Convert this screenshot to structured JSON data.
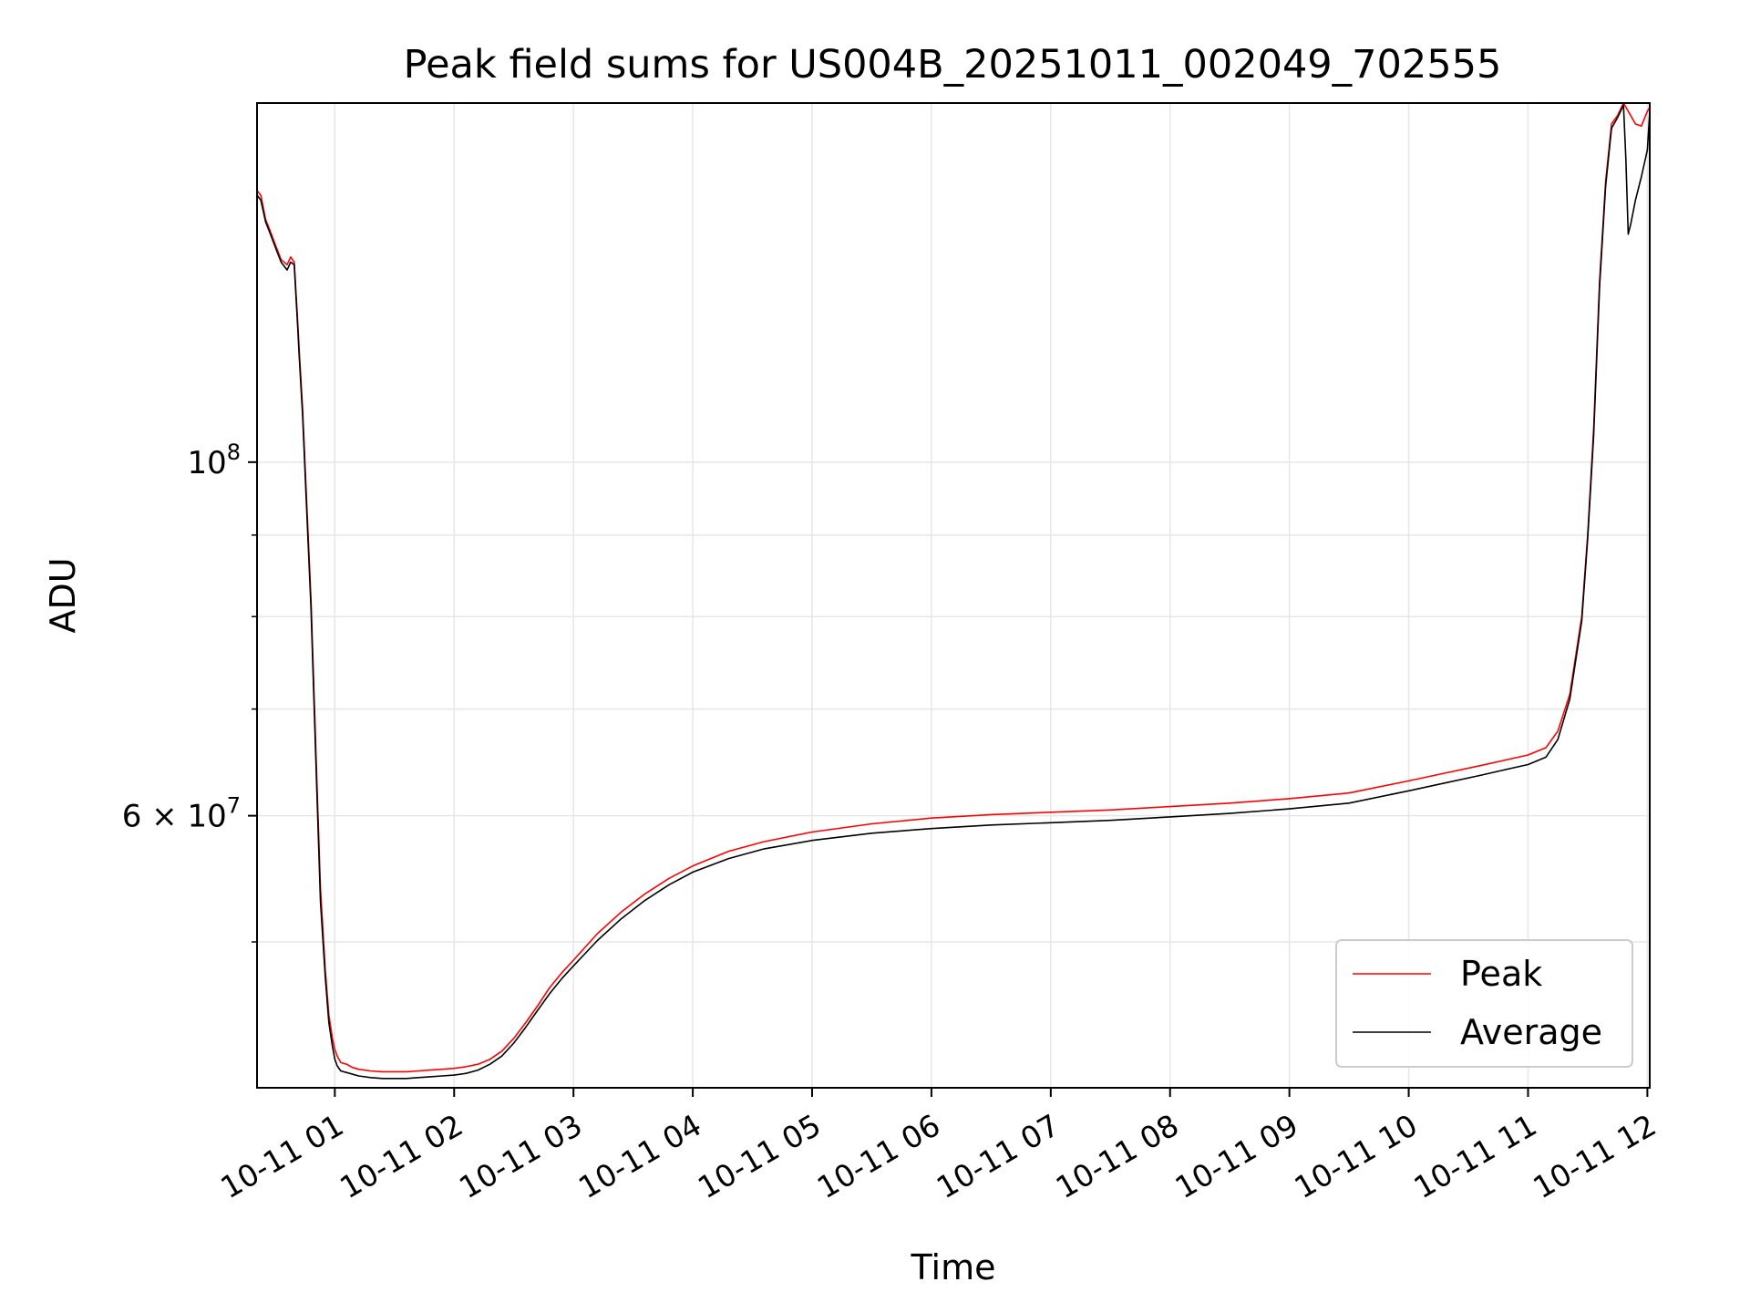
{
  "chart_data": {
    "type": "line",
    "title": "Peak field sums for US004B_20251011_002049_702555",
    "xlabel": "Time",
    "ylabel": "ADU",
    "yscale": "log",
    "ylim": [
      40500000,
      168000000
    ],
    "xlim": [
      0.348,
      12.02
    ],
    "grid": true,
    "legend_position": "lower-right",
    "y_ticks": [
      {
        "value": 100000000,
        "base": "10",
        "exp": "8",
        "mult": ""
      },
      {
        "value": 60000000,
        "base": "10",
        "exp": "7",
        "mult": "6 × "
      }
    ],
    "y_minor_ticks": [
      50000000,
      70000000,
      80000000,
      90000000
    ],
    "x_ticks": [
      {
        "value": 1,
        "label": "10-11 01"
      },
      {
        "value": 2,
        "label": "10-11 02"
      },
      {
        "value": 3,
        "label": "10-11 03"
      },
      {
        "value": 4,
        "label": "10-11 04"
      },
      {
        "value": 5,
        "label": "10-11 05"
      },
      {
        "value": 6,
        "label": "10-11 06"
      },
      {
        "value": 7,
        "label": "10-11 07"
      },
      {
        "value": 8,
        "label": "10-11 08"
      },
      {
        "value": 9,
        "label": "10-11 09"
      },
      {
        "value": 10,
        "label": "10-11 10"
      },
      {
        "value": 11,
        "label": "10-11 11"
      },
      {
        "value": 12,
        "label": "10-11 12"
      }
    ],
    "series": [
      {
        "name": "Peak",
        "color": "#ff0000",
        "x": [
          0.35,
          0.38,
          0.42,
          0.46,
          0.5,
          0.55,
          0.6,
          0.63,
          0.66,
          0.69,
          0.7,
          0.73,
          0.76,
          0.8,
          0.85,
          0.88,
          0.92,
          0.95,
          0.98,
          1.0,
          1.02,
          1.05,
          1.1,
          1.15,
          1.2,
          1.3,
          1.4,
          1.5,
          1.6,
          1.7,
          1.8,
          1.9,
          2.0,
          2.1,
          2.2,
          2.3,
          2.4,
          2.5,
          2.6,
          2.7,
          2.8,
          2.9,
          3.0,
          3.2,
          3.4,
          3.6,
          3.8,
          4.0,
          4.3,
          4.6,
          5.0,
          5.5,
          6.0,
          6.5,
          7.0,
          7.5,
          8.0,
          8.5,
          9.0,
          9.5,
          10.0,
          10.3,
          10.6,
          10.8,
          11.0,
          11.15,
          11.25,
          11.35,
          11.45,
          11.5,
          11.55,
          11.6,
          11.65,
          11.7,
          11.75,
          11.8,
          11.82,
          11.84,
          11.86,
          11.9,
          11.95,
          12.0,
          12.02
        ],
        "y": [
          148000000,
          147000000,
          142000000,
          139500000,
          137000000,
          134000000,
          133000000,
          134500000,
          133500000,
          122000000,
          118000000,
          108000000,
          96000000,
          82000000,
          63000000,
          54000000,
          48000000,
          45000000,
          43500000,
          42800000,
          42400000,
          42000000,
          41900000,
          41700000,
          41600000,
          41500000,
          41450000,
          41450000,
          41450000,
          41500000,
          41550000,
          41600000,
          41650000,
          41750000,
          41900000,
          42200000,
          42700000,
          43500000,
          44500000,
          45600000,
          46800000,
          47800000,
          48700000,
          50600000,
          52200000,
          53600000,
          54800000,
          55800000,
          57000000,
          57800000,
          58600000,
          59300000,
          59800000,
          60100000,
          60300000,
          60500000,
          60800000,
          61100000,
          61500000,
          62000000,
          63100000,
          63800000,
          64500000,
          65000000,
          65500000,
          66200000,
          67800000,
          71500000,
          80000000,
          90000000,
          105000000,
          130000000,
          150000000,
          163000000,
          165000000,
          168000000,
          167000000,
          166000000,
          165000000,
          163000000,
          162500000,
          166000000,
          167000000
        ]
      },
      {
        "name": "Average",
        "color": "#000000",
        "x": [
          0.35,
          0.38,
          0.42,
          0.46,
          0.5,
          0.55,
          0.6,
          0.63,
          0.66,
          0.69,
          0.7,
          0.73,
          0.76,
          0.8,
          0.85,
          0.88,
          0.92,
          0.95,
          0.98,
          1.0,
          1.02,
          1.05,
          1.1,
          1.15,
          1.2,
          1.3,
          1.4,
          1.5,
          1.6,
          1.7,
          1.8,
          1.9,
          2.0,
          2.1,
          2.2,
          2.3,
          2.4,
          2.5,
          2.6,
          2.7,
          2.8,
          2.9,
          3.0,
          3.2,
          3.4,
          3.6,
          3.8,
          4.0,
          4.3,
          4.6,
          5.0,
          5.5,
          6.0,
          6.5,
          7.0,
          7.5,
          8.0,
          8.5,
          9.0,
          9.5,
          10.0,
          10.3,
          10.6,
          10.8,
          11.0,
          11.15,
          11.25,
          11.35,
          11.45,
          11.5,
          11.55,
          11.6,
          11.65,
          11.7,
          11.75,
          11.8,
          11.82,
          11.84,
          11.86,
          11.9,
          11.95,
          12.0,
          12.02
        ],
        "y": [
          147000000,
          146000000,
          141500000,
          139000000,
          136500000,
          133500000,
          132000000,
          133500000,
          133000000,
          121000000,
          117000000,
          107000000,
          95000000,
          81000000,
          62000000,
          53000000,
          47500000,
          44500000,
          43000000,
          42200000,
          41800000,
          41500000,
          41400000,
          41300000,
          41200000,
          41100000,
          41050000,
          41050000,
          41050000,
          41100000,
          41150000,
          41200000,
          41250000,
          41350000,
          41550000,
          41900000,
          42400000,
          43200000,
          44200000,
          45300000,
          46400000,
          47400000,
          48300000,
          50100000,
          51700000,
          53100000,
          54300000,
          55300000,
          56400000,
          57200000,
          57900000,
          58500000,
          58900000,
          59200000,
          59400000,
          59600000,
          59900000,
          60200000,
          60600000,
          61100000,
          62200000,
          62900000,
          63600000,
          64100000,
          64600000,
          65300000,
          67000000,
          71000000,
          79500000,
          89500000,
          104000000,
          129000000,
          149000000,
          162000000,
          164500000,
          167500000,
          155000000,
          139000000,
          141000000,
          146000000,
          151000000,
          157000000,
          166000000
        ]
      }
    ]
  }
}
